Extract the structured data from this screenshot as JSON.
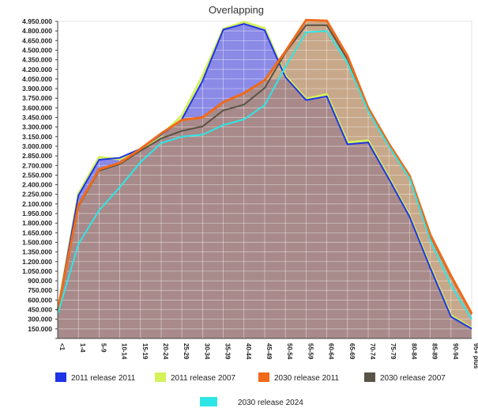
{
  "chart_data": {
    "type": "area",
    "title": "Overlapping",
    "xlabel": "",
    "ylabel": "",
    "ylim": [
      0,
      4950000
    ],
    "y_ticks": [
      "4.950.000",
      "4.800.000",
      "4.650.000",
      "4.500.000",
      "4.350.000",
      "4.200.000",
      "4.050.000",
      "3.900.000",
      "3.750.000",
      "3.600.000",
      "3.450.000",
      "3.300.000",
      "3.150.000",
      "3.000.000",
      "2.850.000",
      "2.700.000",
      "2.550.000",
      "2.400.000",
      "2.250.000",
      "2.100.000",
      "1.950.000",
      "1.800.000",
      "1.650.000",
      "1.500.000",
      "1.350.000",
      "1.200.000",
      "1.050.000",
      "900.000",
      "750.000",
      "600.000",
      "450.000",
      "300.000",
      "150.000",
      ""
    ],
    "y_tick_values": [
      4950000,
      4800000,
      4650000,
      4500000,
      4350000,
      4200000,
      4050000,
      3900000,
      3750000,
      3600000,
      3450000,
      3300000,
      3150000,
      3000000,
      2850000,
      2700000,
      2550000,
      2400000,
      2250000,
      2100000,
      1950000,
      1800000,
      1650000,
      1500000,
      1350000,
      1200000,
      1050000,
      900000,
      750000,
      600000,
      450000,
      300000,
      150000,
      0
    ],
    "categories": [
      "<1",
      "1-4",
      "5-9",
      "10-14",
      "15-19",
      "20-24",
      "25-29",
      "30-34",
      "35-39",
      "40-44",
      "45-49",
      "50-54",
      "55-59",
      "60-64",
      "65-69",
      "70-74",
      "75-79",
      "80-84",
      "85-89",
      "90-94",
      "95+ plus"
    ],
    "series": [
      {
        "name": "2011 release 2011",
        "color": "#1e34e6",
        "fill": "#8b8ae6",
        "values": [
          430000,
          2230000,
          2790000,
          2820000,
          2960000,
          3180000,
          3420000,
          4020000,
          4820000,
          4910000,
          4810000,
          4080000,
          3720000,
          3780000,
          3030000,
          3060000,
          2490000,
          1900000,
          1100000,
          340000,
          150000
        ]
      },
      {
        "name": "2011 release 2007",
        "color": "#d4f25a",
        "fill": "none",
        "values": [
          430000,
          2260000,
          2830000,
          2800000,
          2950000,
          3170000,
          3480000,
          4100000,
          4830000,
          4940000,
          4840000,
          4100000,
          3740000,
          3810000,
          3060000,
          3090000,
          2510000,
          1920000,
          1120000,
          360000,
          160000
        ]
      },
      {
        "name": "2030 release 2011",
        "color": "#f06a1a",
        "fill": "#c8a88a",
        "values": [
          430000,
          2080000,
          2640000,
          2740000,
          2960000,
          3200000,
          3410000,
          3450000,
          3690000,
          3830000,
          4030000,
          4480000,
          4970000,
          4960000,
          4410000,
          3600000,
          3040000,
          2540000,
          1620000,
          980000,
          390000
        ]
      },
      {
        "name": "2030 release 2007",
        "color": "#5a5446",
        "fill": "none",
        "values": [
          430000,
          2060000,
          2620000,
          2720000,
          2930000,
          3120000,
          3240000,
          3310000,
          3560000,
          3650000,
          3910000,
          4460000,
          4890000,
          4890000,
          4360000,
          3590000,
          3030000,
          2530000,
          1600000,
          960000,
          380000
        ]
      },
      {
        "name": "2030 release 2024",
        "color": "#2ee6e6",
        "fill": "none",
        "values": [
          380000,
          1470000,
          2000000,
          2360000,
          2750000,
          3050000,
          3150000,
          3180000,
          3330000,
          3420000,
          3640000,
          4240000,
          4780000,
          4800000,
          4300000,
          3550000,
          3000000,
          2500000,
          1530000,
          830000,
          300000
        ]
      }
    ],
    "background_series_fill": "#a88a8a",
    "grid": true,
    "legend_position": "bottom"
  }
}
